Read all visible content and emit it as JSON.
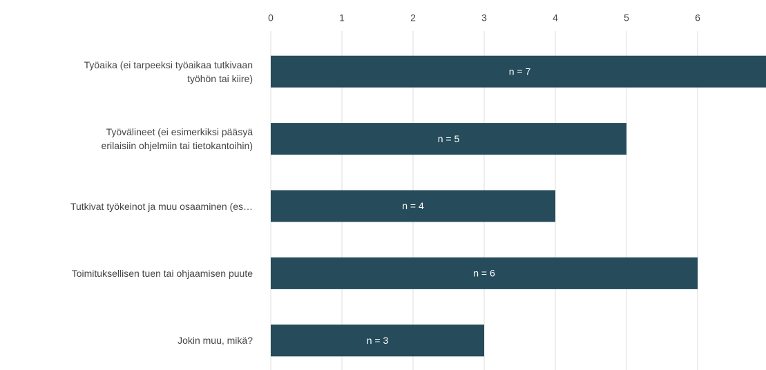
{
  "chart_data": {
    "type": "bar",
    "orientation": "horizontal",
    "categories": [
      "Työaika (ei tarpeeksi työaikaa tutkivaan\ntyöhön tai kiire)",
      "Työvälineet (ei esimerkiksi pääsyä\nerilaisiin ohjelmiin tai tietokantoihin)",
      "Tutkivat työkeinot ja muu osaaminen (es…",
      "Toimituksellisen tuen tai ohjaamisen puute",
      "Jokin muu, mikä?"
    ],
    "values": [
      7,
      5,
      4,
      6,
      3
    ],
    "value_labels": [
      "n = 7",
      "n = 5",
      "n = 4",
      "n = 6",
      "n = 3"
    ],
    "color": "#264b5a",
    "xlim": [
      0,
      7
    ],
    "xticks": [
      0,
      1,
      2,
      3,
      4,
      5,
      6,
      7
    ],
    "grid": true
  }
}
